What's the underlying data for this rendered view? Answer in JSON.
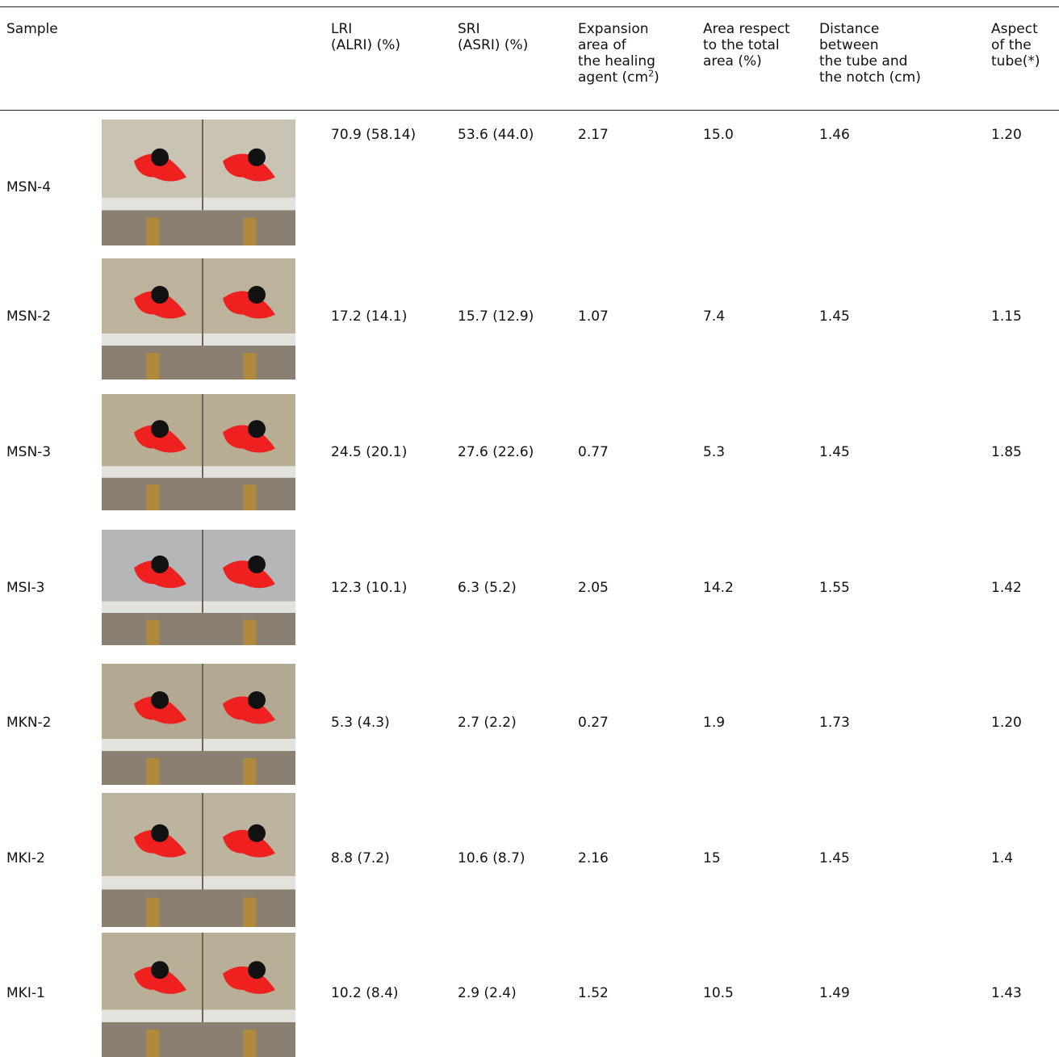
{
  "table": {
    "header": [
      {
        "lines": [
          "Sample"
        ]
      },
      {
        "lines": [
          "LRI",
          "(ALRI) (%)"
        ]
      },
      {
        "lines": [
          "SRI",
          "(ASRI) (%)"
        ]
      },
      {
        "lines": [
          "Expansion",
          "area of",
          "the healing",
          "agent (cm"
        ],
        "sup": "2",
        "tail": ")"
      },
      {
        "lines": [
          "Area respect",
          "to the total",
          "area (%)"
        ]
      },
      {
        "lines": [
          "Distance",
          "between",
          "the tube and",
          "the notch (cm)"
        ]
      },
      {
        "lines": [
          "Aspect",
          "of the",
          "tube(*)"
        ]
      }
    ],
    "rows": [
      [
        "MSN-4",
        "70.9 (58.14)",
        "53.6 (44.0)",
        "2.17",
        "15.0",
        "1.46",
        "1.20"
      ],
      [
        "MSN-2",
        "17.2 (14.1)",
        "15.7 (12.9)",
        "1.07",
        "7.4",
        "1.45",
        "1.15"
      ],
      [
        "MSN-3",
        "24.5 (20.1)",
        "27.6 (22.6)",
        "0.77",
        "5.3",
        "1.45",
        "1.85"
      ],
      [
        "MSI-3",
        "12.3 (10.1)",
        "6.3 (5.2)",
        "2.05",
        "14.2",
        "1.55",
        "1.42"
      ],
      [
        "MKN-2",
        "5.3 (4.3)",
        "2.7 (2.2)",
        "0.27",
        "1.9",
        "1.73",
        "1.20"
      ],
      [
        "MKI-2",
        "8.8 (7.2)",
        "10.6 (8.7)",
        "2.16",
        "15",
        "1.45",
        "1.4"
      ],
      [
        "MKI-1",
        "10.2 (8.4)",
        "2.9 (2.4)",
        "1.52",
        "10.5",
        "1.49",
        "1.43"
      ]
    ]
  }
}
